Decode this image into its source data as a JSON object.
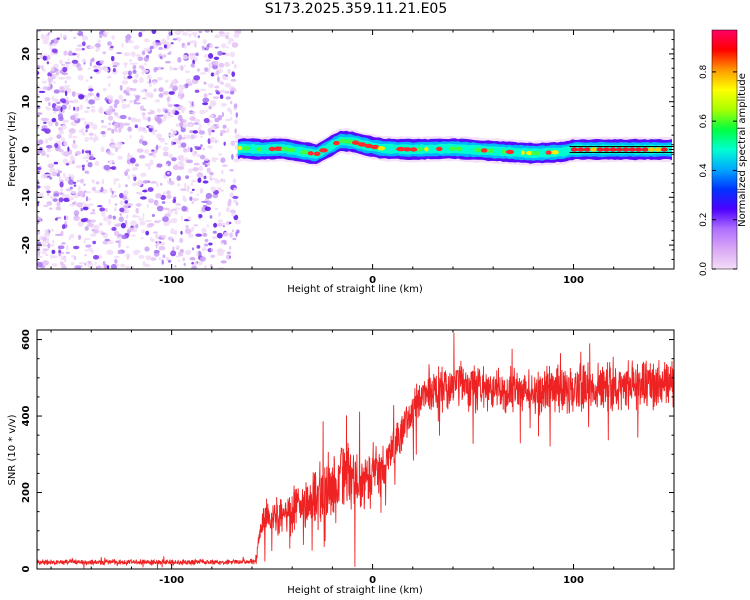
{
  "title": "S173.2025.359.11.21.E05",
  "colors": {
    "snr_line": "#ee2222",
    "axis": "#000000",
    "scatter": "#7b2ff0",
    "colormap": [
      "#f4ddf8",
      "#d9a8f5",
      "#b070ff",
      "#4d00ff",
      "#0033ff",
      "#00a8ff",
      "#00ffd0",
      "#00ff40",
      "#aaff00",
      "#ffff00",
      "#ff9900",
      "#ff0000",
      "#ff0066"
    ]
  },
  "chart_data": [
    {
      "type": "heatmap",
      "name": "spectrogram",
      "xlabel": "Height of straight line (km)",
      "ylabel": "Frequency (Hz)",
      "xlim": [
        -167,
        150
      ],
      "ylim": [
        -25,
        25
      ],
      "xticks": [
        -100,
        0,
        100
      ],
      "xtick_labels": [
        "-100",
        "0",
        "100"
      ],
      "yticks": [
        -20,
        -10,
        0,
        10,
        20
      ],
      "ytick_labels": [
        "-20",
        "-10",
        "0",
        "10",
        "20"
      ],
      "noise_region_x": [
        -167,
        -68
      ],
      "signal_band_freq_hz": 0,
      "signal_trace": [
        {
          "x": -66,
          "y": 0.3
        },
        {
          "x": -55,
          "y": 0.0
        },
        {
          "x": -45,
          "y": 0.2
        },
        {
          "x": -35,
          "y": -0.5
        },
        {
          "x": -28,
          "y": -1.0
        },
        {
          "x": -22,
          "y": 0.4
        },
        {
          "x": -16,
          "y": 1.8
        },
        {
          "x": -10,
          "y": 1.6
        },
        {
          "x": -4,
          "y": 0.9
        },
        {
          "x": 5,
          "y": 0.2
        },
        {
          "x": 20,
          "y": 0.0
        },
        {
          "x": 40,
          "y": 0.2
        },
        {
          "x": 60,
          "y": -0.3
        },
        {
          "x": 80,
          "y": -0.8
        },
        {
          "x": 95,
          "y": -0.5
        },
        {
          "x": 100,
          "y": 0.0
        },
        {
          "x": 150,
          "y": 0.0
        }
      ]
    },
    {
      "type": "colorbar",
      "name": "amplitude-colorbar",
      "label": "Normalized spectral amplitude",
      "range": [
        0,
        0.97
      ],
      "ticks": [
        0.0,
        0.2,
        0.4,
        0.6,
        0.8
      ],
      "tick_labels": [
        "0.0",
        "0.2",
        "0.4",
        "0.6",
        "0.8"
      ]
    },
    {
      "type": "line",
      "name": "snr",
      "xlabel": "Height of straight line (km)",
      "ylabel": "SNR (10 * v/v)",
      "xlim": [
        -167,
        150
      ],
      "ylim": [
        0,
        625
      ],
      "xticks": [
        -100,
        0,
        100
      ],
      "xtick_labels": [
        "-100",
        "0",
        "100"
      ],
      "yticks": [
        0,
        200,
        400,
        600
      ],
      "ytick_labels": [
        "0",
        "200",
        "400",
        "600"
      ],
      "series": [
        {
          "name": "SNR",
          "envelope": [
            {
              "x": -167,
              "mean": 18,
              "spread": 8
            },
            {
              "x": -70,
              "mean": 18,
              "spread": 8
            },
            {
              "x": -58,
              "mean": 20,
              "spread": 10
            },
            {
              "x": -55,
              "mean": 130,
              "spread": 60
            },
            {
              "x": -45,
              "mean": 140,
              "spread": 70
            },
            {
              "x": -35,
              "mean": 170,
              "spread": 80
            },
            {
              "x": -25,
              "mean": 200,
              "spread": 110
            },
            {
              "x": -15,
              "mean": 230,
              "spread": 110
            },
            {
              "x": -5,
              "mean": 230,
              "spread": 100
            },
            {
              "x": 5,
              "mean": 260,
              "spread": 80
            },
            {
              "x": 15,
              "mean": 360,
              "spread": 60
            },
            {
              "x": 25,
              "mean": 460,
              "spread": 60
            },
            {
              "x": 40,
              "mean": 480,
              "spread": 70
            },
            {
              "x": 60,
              "mean": 470,
              "spread": 70
            },
            {
              "x": 80,
              "mean": 465,
              "spread": 70
            },
            {
              "x": 100,
              "mean": 470,
              "spread": 80
            },
            {
              "x": 120,
              "mean": 480,
              "spread": 80
            },
            {
              "x": 150,
              "mean": 485,
              "spread": 80
            }
          ]
        }
      ]
    }
  ]
}
